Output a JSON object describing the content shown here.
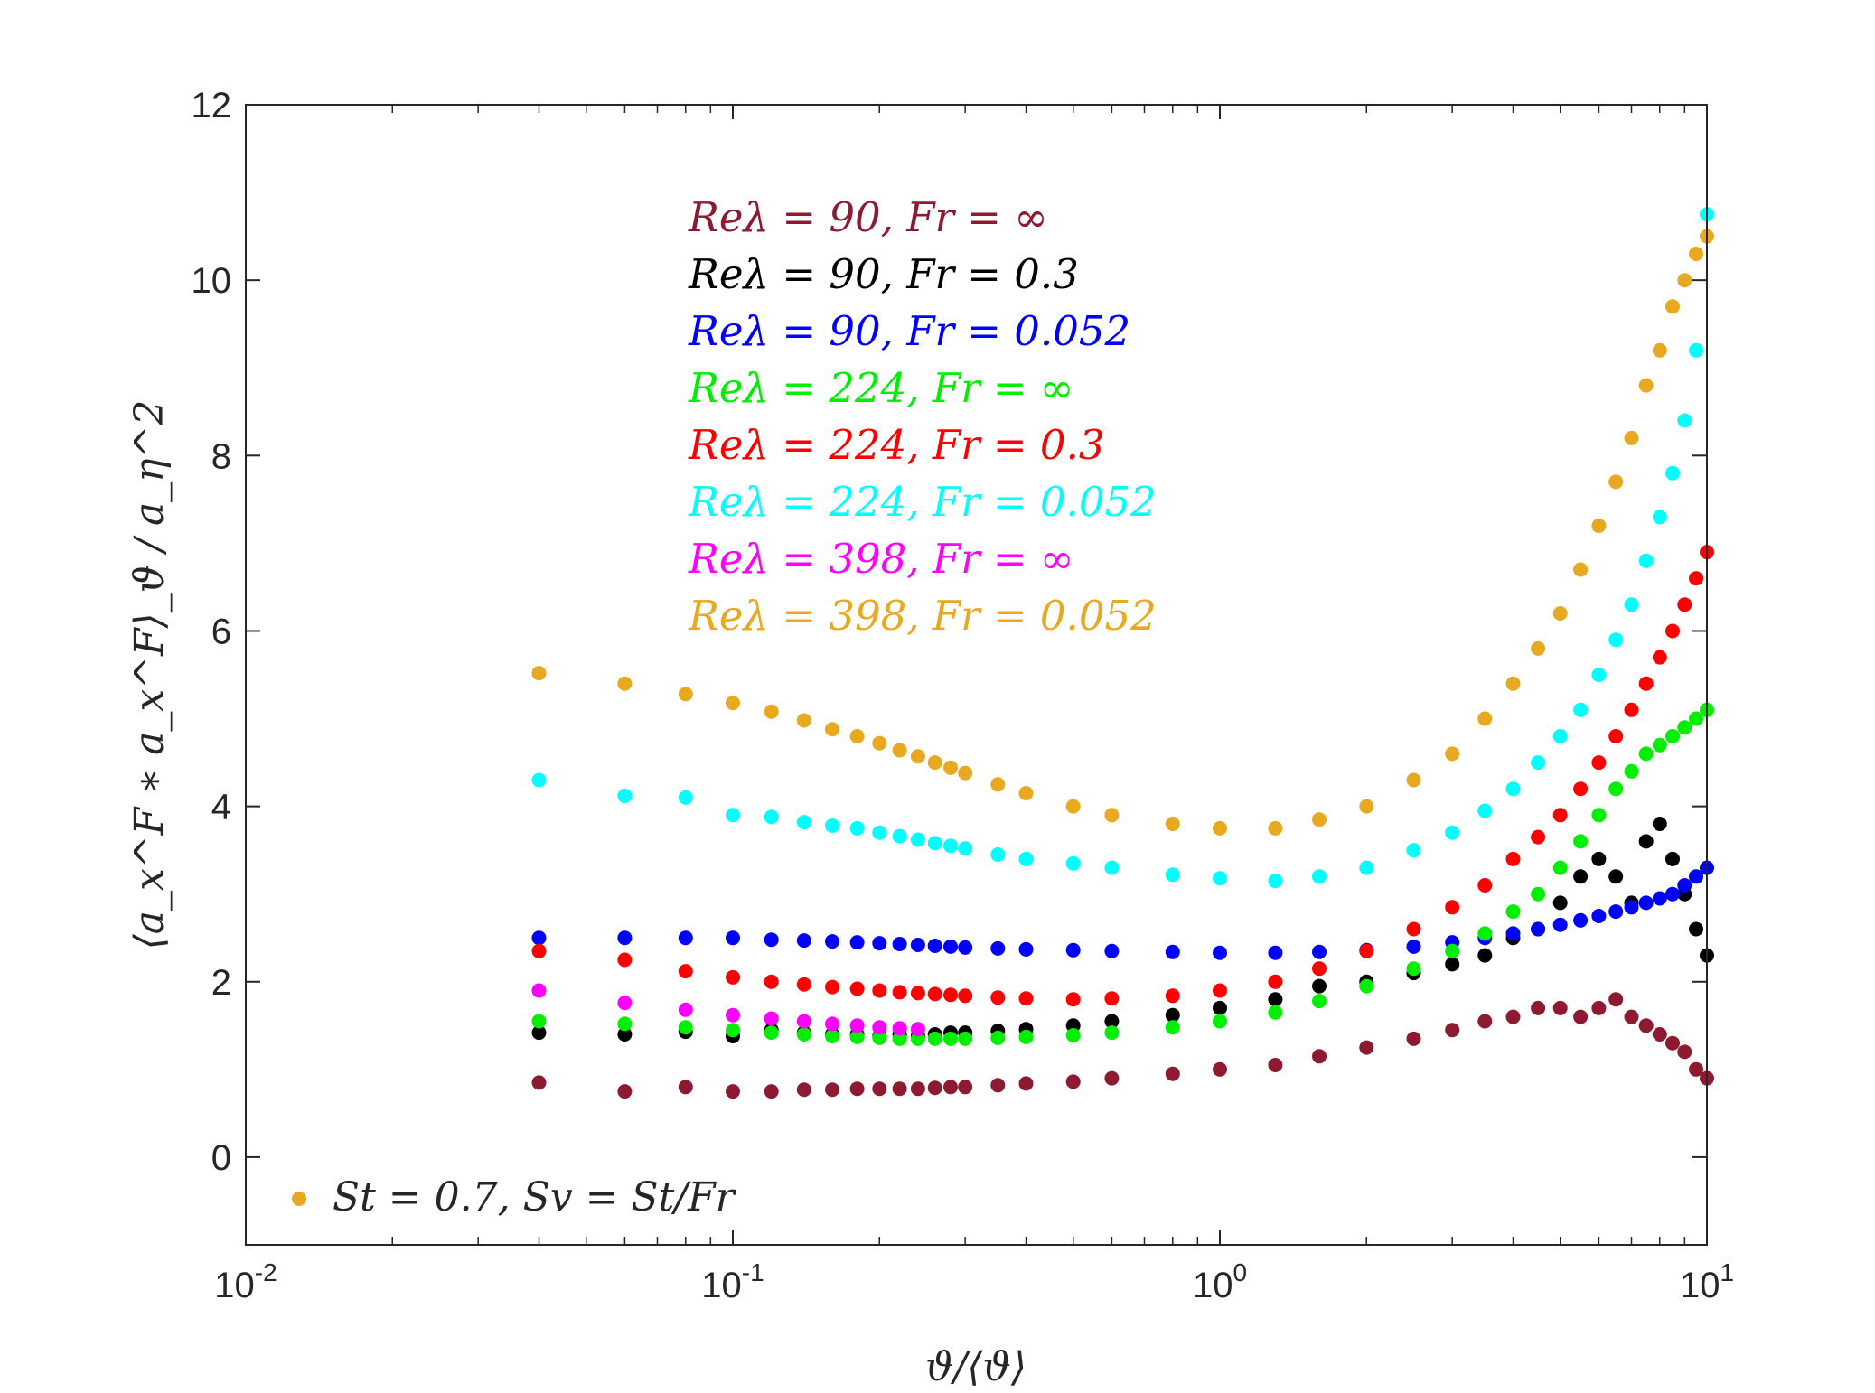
{
  "chart_data": {
    "type": "scatter",
    "title": "",
    "xlabel": "ϑ/⟨ϑ⟩",
    "ylabel": "⟨a_x^F ∗ a_x^F⟩_ϑ / a_η^2",
    "xscale": "log",
    "xlim": [
      0.01,
      10
    ],
    "ylim": [
      -1,
      12
    ],
    "x_ticks": [
      {
        "value": 0.01,
        "base": "10",
        "exp": "-2"
      },
      {
        "value": 0.1,
        "base": "10",
        "exp": "-1"
      },
      {
        "value": 1,
        "base": "10",
        "exp": "0"
      },
      {
        "value": 10,
        "base": "10",
        "exp": "1"
      }
    ],
    "y_ticks": [
      {
        "value": 0,
        "label": "0"
      },
      {
        "value": 2,
        "label": "2"
      },
      {
        "value": 4,
        "label": "4"
      },
      {
        "value": 6,
        "label": "6"
      },
      {
        "value": 8,
        "label": "8"
      },
      {
        "value": 10,
        "label": "10"
      },
      {
        "value": 12,
        "label": "12"
      }
    ],
    "grid": false,
    "legend_position": "upper-center",
    "legend": [
      {
        "label": "Reλ = 90, Fr = ∞",
        "color": "#8e1a31"
      },
      {
        "label": "Reλ = 90, Fr = 0.3",
        "color": "#000000"
      },
      {
        "label": "Reλ = 90, Fr = 0.052",
        "color": "#0000ff"
      },
      {
        "label": "Reλ = 224, Fr = ∞",
        "color": "#00ee00"
      },
      {
        "label": "Reλ = 224, Fr = 0.3",
        "color": "#ff0000"
      },
      {
        "label": "Reλ = 224, Fr = 0.052",
        "color": "#00ffff"
      },
      {
        "label": "Reλ = 398, Fr = ∞",
        "color": "#ff00ff"
      },
      {
        "label": "Reλ = 398, Fr = 0.052",
        "color": "#e8a820"
      }
    ],
    "footnote": {
      "label": "St = 0.7, Sv = St/Fr",
      "color": "#e8a820"
    },
    "series": [
      {
        "color": "#8e1a31",
        "x": [
          0.04,
          0.06,
          0.08,
          0.1,
          0.12,
          0.14,
          0.16,
          0.18,
          0.2,
          0.22,
          0.24,
          0.26,
          0.28,
          0.3,
          0.35,
          0.4,
          0.5,
          0.6,
          0.8,
          1.0,
          1.3,
          1.6,
          2.0,
          2.5,
          3.0,
          3.5,
          4.0,
          4.5,
          5.0,
          5.5,
          6.0,
          6.5,
          7.0,
          7.5,
          8.0,
          8.5,
          9.0,
          9.5,
          10.0
        ],
        "y": [
          0.85,
          0.75,
          0.8,
          0.75,
          0.75,
          0.77,
          0.77,
          0.78,
          0.78,
          0.78,
          0.78,
          0.79,
          0.8,
          0.8,
          0.82,
          0.84,
          0.86,
          0.9,
          0.95,
          1.0,
          1.05,
          1.15,
          1.25,
          1.35,
          1.45,
          1.55,
          1.6,
          1.7,
          1.7,
          1.6,
          1.7,
          1.8,
          1.6,
          1.5,
          1.4,
          1.3,
          1.2,
          1.0,
          0.9
        ]
      },
      {
        "color": "#000000",
        "x": [
          0.04,
          0.06,
          0.08,
          0.1,
          0.12,
          0.14,
          0.16,
          0.18,
          0.2,
          0.22,
          0.24,
          0.26,
          0.28,
          0.3,
          0.35,
          0.4,
          0.5,
          0.6,
          0.8,
          1.0,
          1.3,
          1.6,
          2.0,
          2.5,
          3.0,
          3.5,
          4.0,
          4.5,
          5.0,
          5.5,
          6.0,
          6.5,
          7.0,
          7.5,
          8.0,
          8.5,
          9.0,
          9.5,
          10.0
        ],
        "y": [
          1.42,
          1.4,
          1.43,
          1.38,
          1.45,
          1.42,
          1.4,
          1.4,
          1.38,
          1.4,
          1.38,
          1.4,
          1.42,
          1.42,
          1.44,
          1.46,
          1.5,
          1.55,
          1.62,
          1.7,
          1.8,
          1.95,
          2.0,
          2.1,
          2.2,
          2.3,
          2.5,
          2.6,
          2.9,
          3.2,
          3.4,
          3.2,
          2.9,
          3.6,
          3.8,
          3.4,
          3.0,
          2.6,
          2.3
        ]
      },
      {
        "color": "#0000ff",
        "x": [
          0.04,
          0.06,
          0.08,
          0.1,
          0.12,
          0.14,
          0.16,
          0.18,
          0.2,
          0.22,
          0.24,
          0.26,
          0.28,
          0.3,
          0.35,
          0.4,
          0.5,
          0.6,
          0.8,
          1.0,
          1.3,
          1.6,
          2.0,
          2.5,
          3.0,
          3.5,
          4.0,
          4.5,
          5.0,
          5.5,
          6.0,
          6.5,
          7.0,
          7.5,
          8.0,
          8.5,
          9.0,
          9.5,
          10.0
        ],
        "y": [
          2.5,
          2.5,
          2.5,
          2.5,
          2.48,
          2.47,
          2.46,
          2.45,
          2.44,
          2.43,
          2.42,
          2.41,
          2.4,
          2.39,
          2.38,
          2.37,
          2.36,
          2.35,
          2.34,
          2.33,
          2.33,
          2.34,
          2.36,
          2.4,
          2.45,
          2.5,
          2.55,
          2.6,
          2.65,
          2.7,
          2.75,
          2.8,
          2.85,
          2.9,
          2.95,
          3.0,
          3.1,
          3.2,
          3.3
        ]
      },
      {
        "color": "#00ee00",
        "x": [
          0.04,
          0.06,
          0.08,
          0.1,
          0.12,
          0.14,
          0.16,
          0.18,
          0.2,
          0.22,
          0.24,
          0.26,
          0.28,
          0.3,
          0.35,
          0.4,
          0.5,
          0.6,
          0.8,
          1.0,
          1.3,
          1.6,
          2.0,
          2.5,
          3.0,
          3.5,
          4.0,
          4.5,
          5.0,
          5.5,
          6.0,
          6.5,
          7.0,
          7.5,
          8.0,
          8.5,
          9.0,
          9.5,
          10.0
        ],
        "y": [
          1.55,
          1.52,
          1.48,
          1.45,
          1.42,
          1.4,
          1.38,
          1.37,
          1.36,
          1.35,
          1.35,
          1.35,
          1.35,
          1.35,
          1.36,
          1.37,
          1.39,
          1.42,
          1.48,
          1.55,
          1.65,
          1.78,
          1.95,
          2.15,
          2.35,
          2.55,
          2.8,
          3.0,
          3.3,
          3.6,
          3.9,
          4.2,
          4.4,
          4.6,
          4.7,
          4.8,
          4.9,
          5.0,
          5.1
        ]
      },
      {
        "color": "#ff0000",
        "x": [
          0.04,
          0.06,
          0.08,
          0.1,
          0.12,
          0.14,
          0.16,
          0.18,
          0.2,
          0.22,
          0.24,
          0.26,
          0.28,
          0.3,
          0.35,
          0.4,
          0.5,
          0.6,
          0.8,
          1.0,
          1.3,
          1.6,
          2.0,
          2.5,
          3.0,
          3.5,
          4.0,
          4.5,
          5.0,
          5.5,
          6.0,
          6.5,
          7.0,
          7.5,
          8.0,
          8.5,
          9.0,
          9.5,
          10.0
        ],
        "y": [
          2.35,
          2.25,
          2.12,
          2.05,
          2.0,
          1.97,
          1.94,
          1.92,
          1.9,
          1.88,
          1.87,
          1.86,
          1.85,
          1.84,
          1.82,
          1.81,
          1.8,
          1.81,
          1.84,
          1.9,
          2.0,
          2.15,
          2.35,
          2.6,
          2.85,
          3.1,
          3.4,
          3.65,
          3.9,
          4.2,
          4.5,
          4.8,
          5.1,
          5.4,
          5.7,
          6.0,
          6.3,
          6.6,
          6.9
        ]
      },
      {
        "color": "#00ffff",
        "x": [
          0.04,
          0.06,
          0.08,
          0.1,
          0.12,
          0.14,
          0.16,
          0.18,
          0.2,
          0.22,
          0.24,
          0.26,
          0.28,
          0.3,
          0.35,
          0.4,
          0.5,
          0.6,
          0.8,
          1.0,
          1.3,
          1.6,
          2.0,
          2.5,
          3.0,
          3.5,
          4.0,
          4.5,
          5.0,
          5.5,
          6.0,
          6.5,
          7.0,
          7.5,
          8.0,
          8.5,
          9.0,
          9.5,
          10.0
        ],
        "y": [
          4.3,
          4.12,
          4.1,
          3.9,
          3.88,
          3.82,
          3.78,
          3.75,
          3.7,
          3.66,
          3.62,
          3.58,
          3.55,
          3.52,
          3.45,
          3.4,
          3.35,
          3.3,
          3.22,
          3.18,
          3.15,
          3.2,
          3.3,
          3.5,
          3.7,
          3.95,
          4.2,
          4.5,
          4.8,
          5.1,
          5.5,
          5.9,
          6.3,
          6.8,
          7.3,
          7.8,
          8.4,
          9.2,
          10.75
        ]
      },
      {
        "color": "#ff00ff",
        "x": [
          0.04,
          0.06,
          0.08,
          0.1,
          0.12,
          0.14,
          0.16,
          0.18,
          0.2,
          0.22,
          0.24
        ],
        "y": [
          1.9,
          1.76,
          1.68,
          1.62,
          1.58,
          1.55,
          1.52,
          1.5,
          1.48,
          1.47,
          1.46
        ]
      },
      {
        "color": "#e8a820",
        "x": [
          0.04,
          0.06,
          0.08,
          0.1,
          0.12,
          0.14,
          0.16,
          0.18,
          0.2,
          0.22,
          0.24,
          0.26,
          0.28,
          0.3,
          0.35,
          0.4,
          0.5,
          0.6,
          0.8,
          1.0,
          1.3,
          1.6,
          2.0,
          2.5,
          3.0,
          3.5,
          4.0,
          4.5,
          5.0,
          5.5,
          6.0,
          6.5,
          7.0,
          7.5,
          8.0,
          8.5,
          9.0,
          9.5,
          10.0
        ],
        "y": [
          5.52,
          5.4,
          5.28,
          5.18,
          5.08,
          4.98,
          4.88,
          4.8,
          4.72,
          4.64,
          4.57,
          4.5,
          4.44,
          4.38,
          4.25,
          4.15,
          4.0,
          3.9,
          3.8,
          3.75,
          3.75,
          3.85,
          4.0,
          4.3,
          4.6,
          5.0,
          5.4,
          5.8,
          6.2,
          6.7,
          7.2,
          7.7,
          8.2,
          8.8,
          9.2,
          9.7,
          10.0,
          10.3,
          10.5
        ]
      }
    ]
  }
}
